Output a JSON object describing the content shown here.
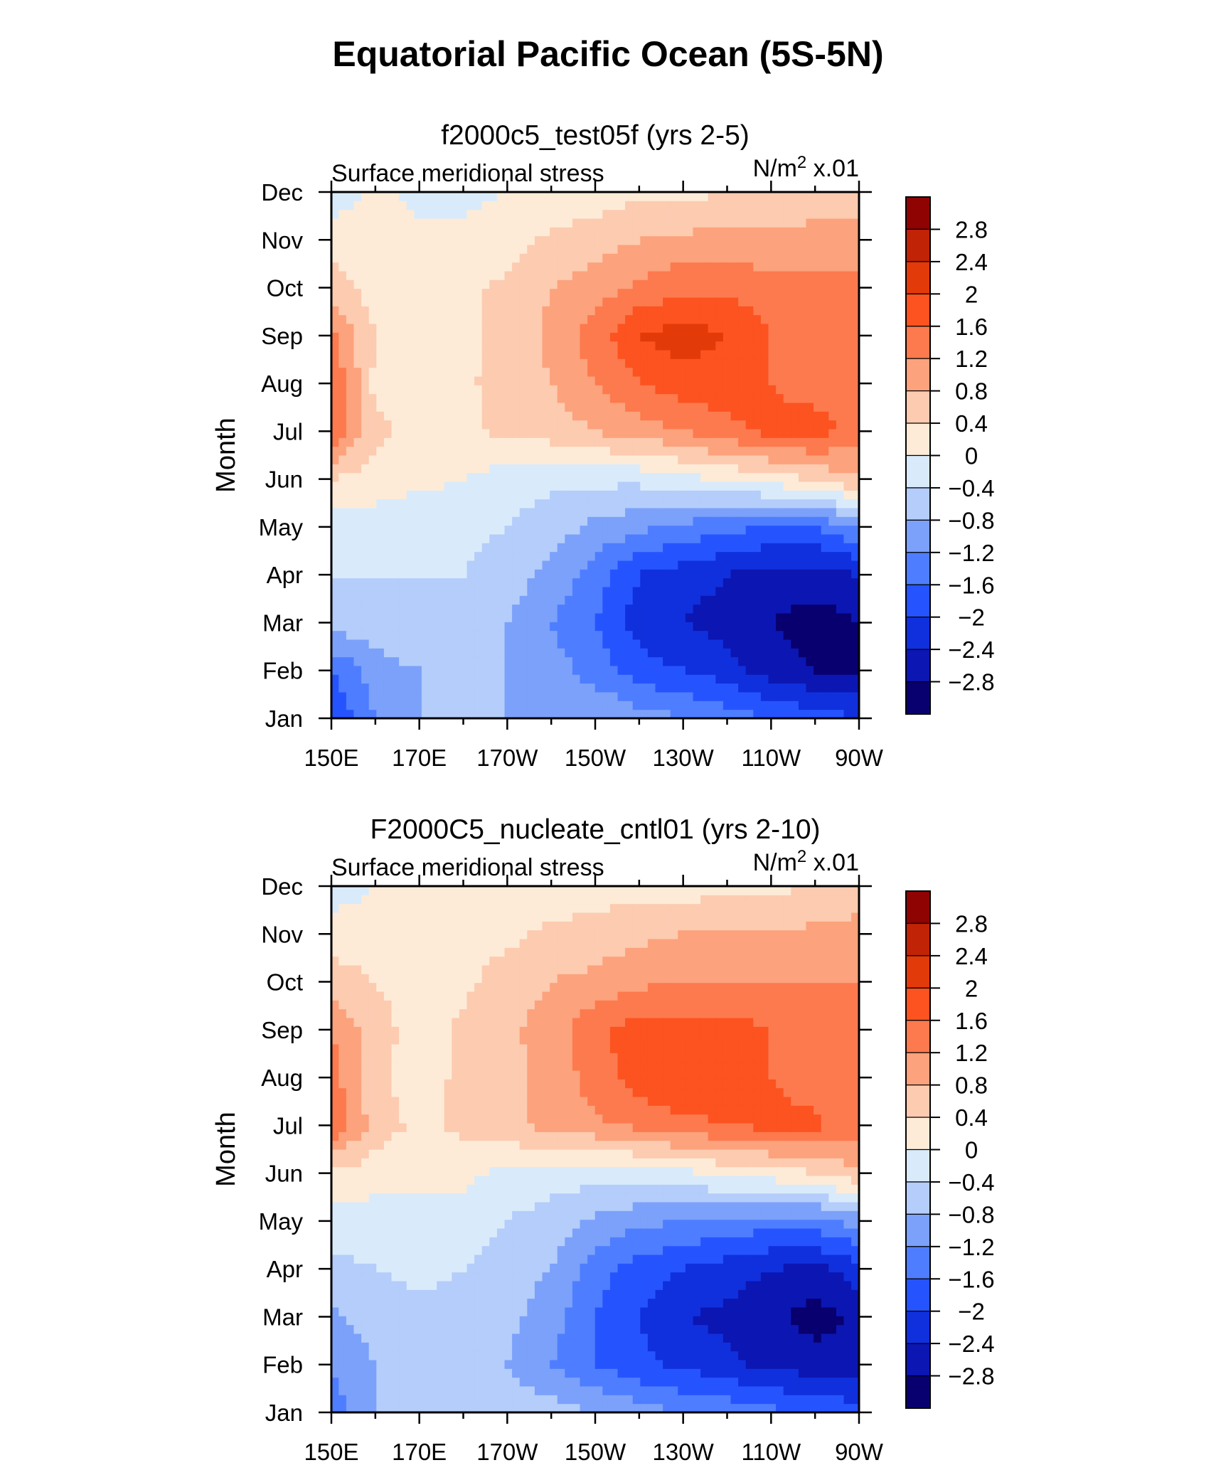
{
  "chart_data": [
    {
      "type": "heatmap",
      "suptitle": "Equatorial Pacific Ocean (5S-5N)",
      "title": "f2000c5_test05f (yrs 2-5)",
      "left_string": "Surface meridional stress",
      "right_string": "N/m",
      "right_string_sup": "2",
      "right_string_suffix": " x.01",
      "xlabel": "",
      "ylabel": "Month",
      "x_tick_labels": [
        "150E",
        "170E",
        "170W",
        "150W",
        "130W",
        "110W",
        "90W"
      ],
      "y_tick_labels": [
        "Jan",
        "Feb",
        "Mar",
        "Apr",
        "May",
        "Jun",
        "Jul",
        "Aug",
        "Sep",
        "Oct",
        "Nov",
        "Dec"
      ],
      "xlim": [
        150,
        270
      ],
      "ylim": [
        1,
        12
      ],
      "lon": [
        150,
        160,
        170,
        180,
        190,
        200,
        210,
        220,
        230,
        240,
        250,
        260,
        270
      ],
      "month": [
        1,
        2,
        3,
        4,
        5,
        6,
        7,
        8,
        9,
        10,
        11,
        12
      ],
      "values": [
        [
          -2.0,
          -1.2,
          -0.8,
          -0.8,
          -0.8,
          -0.8,
          -0.8,
          -1.0,
          -1.2,
          -1.4,
          -1.6,
          -1.8,
          -2.0
        ],
        [
          -1.6,
          -1.0,
          -0.8,
          -0.8,
          -0.8,
          -1.0,
          -1.4,
          -1.8,
          -2.0,
          -2.2,
          -2.6,
          -2.8,
          -2.8
        ],
        [
          -0.6,
          -0.6,
          -0.4,
          -0.5,
          -0.8,
          -1.2,
          -1.6,
          -2.2,
          -2.4,
          -2.6,
          -2.8,
          -3.0,
          -2.8
        ],
        [
          -0.4,
          -0.4,
          -0.4,
          -0.4,
          -0.6,
          -0.9,
          -1.4,
          -2.0,
          -2.2,
          -2.4,
          -2.6,
          -2.6,
          -2.4
        ],
        [
          -0.2,
          -0.2,
          -0.3,
          -0.3,
          -0.4,
          -0.6,
          -0.9,
          -1.1,
          -1.3,
          -1.5,
          -1.6,
          -1.6,
          -1.2
        ],
        [
          0.4,
          0.2,
          0.1,
          0.0,
          -0.2,
          -0.3,
          -0.3,
          -0.3,
          -0.1,
          0.0,
          0.2,
          0.4,
          0.8
        ],
        [
          1.6,
          0.5,
          0.3,
          0.3,
          0.5,
          0.6,
          0.8,
          1.0,
          1.2,
          1.5,
          1.7,
          1.8,
          1.4
        ],
        [
          1.6,
          0.3,
          0.2,
          0.3,
          0.6,
          0.8,
          1.2,
          1.6,
          1.8,
          1.8,
          1.6,
          1.4,
          1.4
        ],
        [
          1.3,
          0.4,
          0.3,
          0.3,
          0.5,
          0.9,
          1.4,
          2.0,
          2.2,
          2.0,
          1.6,
          1.4,
          1.3
        ],
        [
          0.6,
          0.2,
          0.1,
          0.3,
          0.5,
          0.8,
          1.0,
          1.3,
          1.5,
          1.5,
          1.4,
          1.3,
          1.3
        ],
        [
          0.2,
          0.1,
          0.1,
          0.1,
          0.2,
          0.5,
          0.6,
          0.8,
          0.9,
          0.9,
          0.9,
          1.0,
          1.0
        ],
        [
          -0.2,
          0.1,
          -0.1,
          -0.1,
          0.0,
          0.1,
          0.2,
          0.3,
          0.3,
          0.4,
          0.4,
          0.5,
          0.6
        ]
      ]
    },
    {
      "type": "heatmap",
      "title": "F2000C5_nucleate_cntl01 (yrs 2-10)",
      "left_string": "Surface meridional stress",
      "right_string": "N/m",
      "right_string_sup": "2",
      "right_string_suffix": " x.01",
      "xlabel": "",
      "ylabel": "Month",
      "x_tick_labels": [
        "150E",
        "170E",
        "170W",
        "150W",
        "130W",
        "110W",
        "90W"
      ],
      "y_tick_labels": [
        "Jan",
        "Feb",
        "Mar",
        "Apr",
        "May",
        "Jun",
        "Jul",
        "Aug",
        "Sep",
        "Oct",
        "Nov",
        "Dec"
      ],
      "xlim": [
        150,
        270
      ],
      "ylim": [
        1,
        12
      ],
      "lon": [
        150,
        160,
        170,
        180,
        190,
        200,
        210,
        220,
        230,
        240,
        250,
        260,
        270
      ],
      "month": [
        1,
        2,
        3,
        4,
        5,
        6,
        7,
        8,
        9,
        10,
        11,
        12
      ],
      "values": [
        [
          -1.4,
          -0.8,
          -0.6,
          -0.4,
          -0.5,
          -0.6,
          -0.8,
          -1.0,
          -1.2,
          -1.3,
          -1.5,
          -1.7,
          -1.8
        ],
        [
          -1.2,
          -0.8,
          -0.7,
          -0.7,
          -0.8,
          -1.2,
          -1.6,
          -1.9,
          -2.1,
          -2.3,
          -2.5,
          -2.6,
          -2.6
        ],
        [
          -0.9,
          -0.6,
          -0.5,
          -0.5,
          -0.7,
          -1.0,
          -1.6,
          -2.0,
          -2.4,
          -2.5,
          -2.7,
          -3.0,
          -2.7
        ],
        [
          -0.5,
          -0.4,
          -0.3,
          -0.4,
          -0.6,
          -0.8,
          -1.4,
          -1.8,
          -2.0,
          -2.2,
          -2.4,
          -2.5,
          -2.2
        ],
        [
          -0.2,
          -0.2,
          -0.2,
          -0.2,
          -0.4,
          -0.6,
          -0.9,
          -1.1,
          -1.2,
          -1.3,
          -1.4,
          -1.4,
          -1.0
        ],
        [
          0.3,
          0.2,
          0.1,
          0.1,
          -0.1,
          -0.2,
          -0.2,
          -0.2,
          -0.1,
          0.1,
          0.2,
          0.4,
          0.7
        ],
        [
          1.6,
          0.6,
          0.3,
          0.5,
          0.7,
          0.9,
          1.1,
          1.3,
          1.5,
          1.6,
          1.7,
          1.7,
          1.4
        ],
        [
          1.4,
          0.5,
          0.2,
          0.5,
          0.7,
          0.9,
          1.4,
          1.8,
          2.0,
          1.8,
          1.6,
          1.4,
          1.3
        ],
        [
          1.2,
          0.6,
          0.2,
          0.5,
          0.7,
          1.0,
          1.5,
          1.8,
          1.8,
          1.8,
          1.6,
          1.4,
          1.3
        ],
        [
          0.6,
          0.4,
          0.2,
          0.3,
          0.6,
          0.8,
          0.9,
          1.1,
          1.2,
          1.2,
          1.2,
          1.2,
          1.2
        ],
        [
          0.2,
          0.2,
          0.1,
          0.2,
          0.3,
          0.5,
          0.6,
          0.7,
          0.8,
          0.8,
          0.8,
          0.9,
          1.0
        ],
        [
          -0.2,
          0.0,
          0.1,
          0.1,
          0.1,
          0.1,
          0.2,
          0.2,
          0.2,
          0.3,
          0.3,
          0.4,
          0.5
        ]
      ]
    }
  ],
  "colorbar": {
    "levels": [
      -2.8,
      -2.4,
      -2.0,
      -1.6,
      -1.2,
      -0.8,
      -0.4,
      0.0,
      0.4,
      0.8,
      1.2,
      1.6,
      2.0,
      2.4,
      2.8
    ],
    "labels": [
      "2.8",
      "2.4",
      "2",
      "1.6",
      "1.2",
      "0.8",
      "0.4",
      "0",
      "−0.4",
      "−0.8",
      "−1.2",
      "−1.6",
      "−2",
      "−2.4",
      "−2.8"
    ],
    "colors": [
      "#08006e",
      "#0c16b2",
      "#1030dd",
      "#2554ff",
      "#4e7eff",
      "#7ca1fa",
      "#b4cdfa",
      "#d9ebfb",
      "#fdebd7",
      "#fccbb0",
      "#fca27c",
      "#fd7a4e",
      "#fc5320",
      "#e33a09",
      "#c02305",
      "#8f0303"
    ]
  }
}
